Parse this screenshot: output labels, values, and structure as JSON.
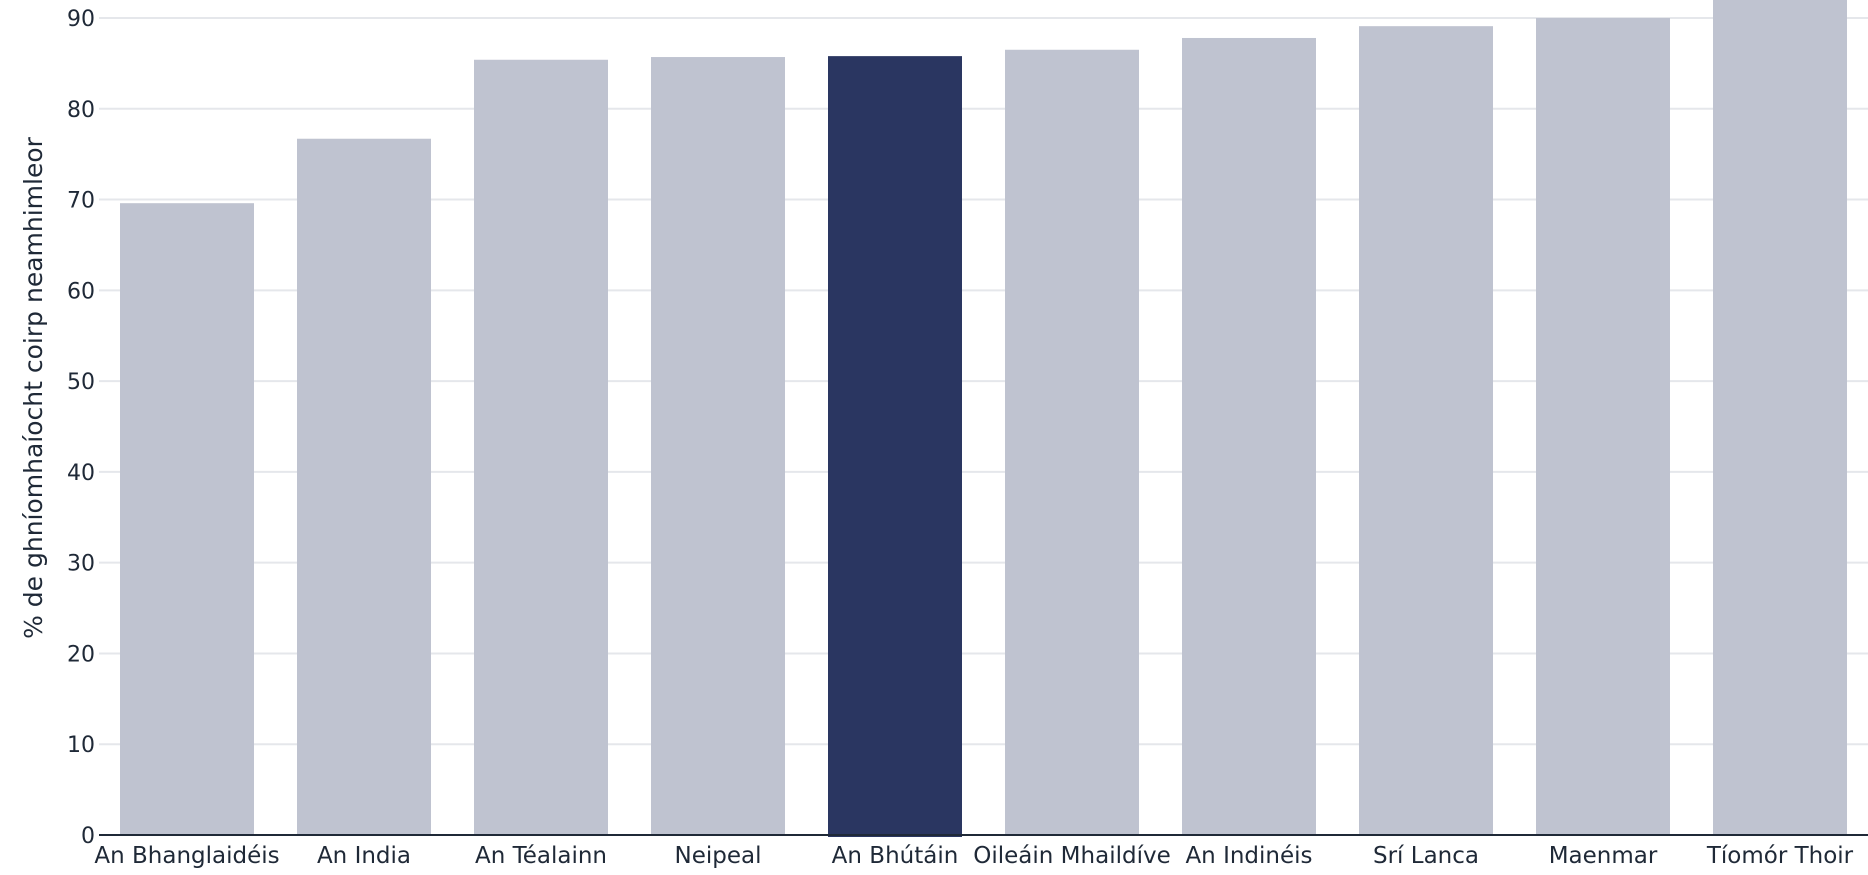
{
  "chart_data": {
    "type": "bar",
    "categories": [
      "An Bhanglaidéis",
      "An India",
      "An Téalainn",
      "Neipeal",
      "An Bhútáin",
      "Oileáin Mhaildíve",
      "An Indinéis",
      "Srí Lanca",
      "Maenmar",
      "Tíomór Thoir"
    ],
    "values": [
      69.6,
      76.7,
      85.4,
      85.7,
      85.8,
      86.5,
      87.8,
      89.1,
      90.0,
      92.5
    ],
    "highlight": "An Bhútáin",
    "ylabel": "% de ghníomhaíocht coirp neamhimleor",
    "xlabel": "",
    "title": "",
    "ylim": [
      0,
      90
    ],
    "yticks": [
      0,
      10,
      20,
      30,
      40,
      50,
      60,
      70,
      80,
      90
    ],
    "grid": true,
    "colors": {
      "bar": "#bfc3d0",
      "highlight": "#2a3661",
      "grid": "#e5e7eb",
      "axis": "#1f2937"
    }
  }
}
